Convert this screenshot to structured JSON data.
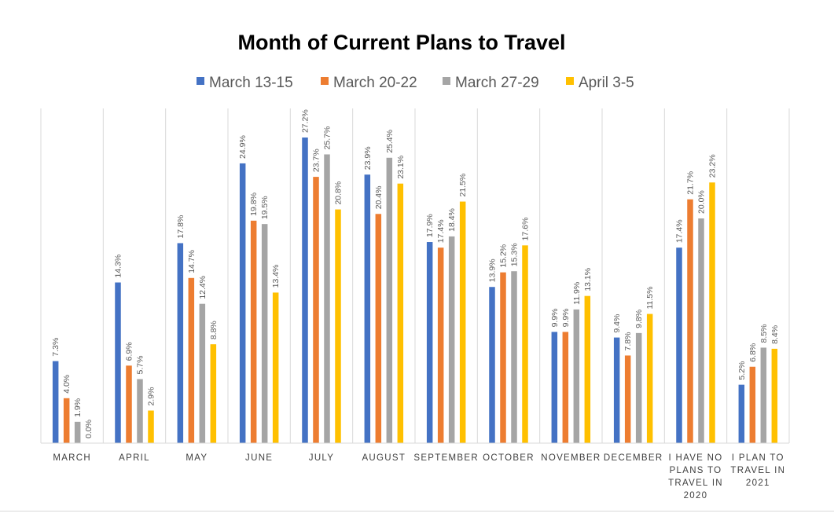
{
  "chart_data": {
    "type": "bar",
    "title": "Month of Current Plans to Travel",
    "xlabel": "",
    "ylabel": "",
    "ylim": [
      0,
      30
    ],
    "grid": false,
    "legend_position": "top-center",
    "categories": [
      [
        "MARCH"
      ],
      [
        "APRIL"
      ],
      [
        "MAY"
      ],
      [
        "JUNE"
      ],
      [
        "JULY"
      ],
      [
        "AUGUST"
      ],
      [
        "SEPTEMBER"
      ],
      [
        "OCTOBER"
      ],
      [
        "NOVEMBER"
      ],
      [
        "DECEMBER"
      ],
      [
        "I HAVE NO",
        "PLANS TO",
        "TRAVEL IN",
        "2020"
      ],
      [
        "I PLAN TO",
        "TRAVEL IN",
        "2021"
      ]
    ],
    "series": [
      {
        "name": "March 13-15",
        "color": "#4472c4",
        "values": [
          7.3,
          14.3,
          17.8,
          24.9,
          27.2,
          23.9,
          17.9,
          13.9,
          9.9,
          9.4,
          17.4,
          5.2
        ],
        "labels": [
          "7.3%",
          "14.3%",
          "17.8%",
          "24.9%",
          "27.2%",
          "23.9%",
          "17.9%",
          "13.9%",
          "9.9%",
          "9.4%",
          "17.4%",
          "5.2%"
        ]
      },
      {
        "name": "March 20-22",
        "color": "#ed7d31",
        "values": [
          4.0,
          6.9,
          14.7,
          19.8,
          23.7,
          20.4,
          17.4,
          15.2,
          9.9,
          7.8,
          21.7,
          6.8
        ],
        "labels": [
          "4.0%",
          "6.9%",
          "14.7%",
          "19.8%",
          "23.7%",
          "20.4%",
          "17.4%",
          "15.2%",
          "9.9%",
          "7.8%",
          "21.7%",
          "6.8%"
        ]
      },
      {
        "name": "March 27-29",
        "color": "#a5a5a5",
        "values": [
          1.9,
          5.7,
          12.4,
          19.5,
          25.7,
          25.4,
          18.4,
          15.3,
          11.9,
          9.8,
          20.0,
          8.5
        ],
        "labels": [
          "1.9%",
          "5.7%",
          "12.4%",
          "19.5%",
          "25.7%",
          "25.4%",
          "18.4%",
          "15.3%",
          "11.9%",
          "9.8%",
          "20.0%",
          "8.5%"
        ]
      },
      {
        "name": "April 3-5",
        "color": "#ffc000",
        "values": [
          0.0,
          2.9,
          8.8,
          13.4,
          20.8,
          23.1,
          21.5,
          17.6,
          13.1,
          11.5,
          23.2,
          8.4
        ],
        "labels": [
          "0.0%",
          "2.9%",
          "8.8%",
          "13.4%",
          "20.8%",
          "23.1%",
          "21.5%",
          "17.6%",
          "13.1%",
          "11.5%",
          "23.2%",
          "8.4%"
        ]
      }
    ]
  }
}
